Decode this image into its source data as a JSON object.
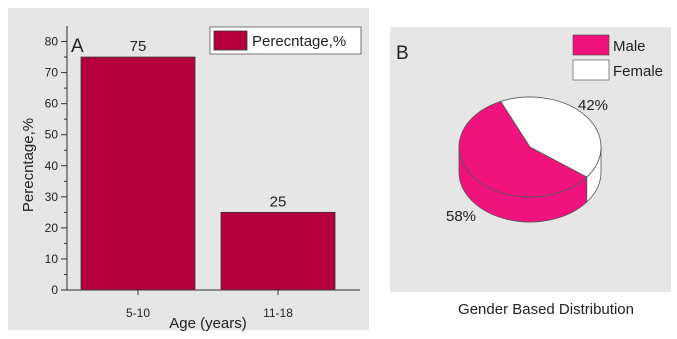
{
  "colors": {
    "panel_bg": "#e6e6e6",
    "bar_fill": "#b5003e",
    "male": "#f0137c",
    "male_side": "#f0137c",
    "female": "#ffffff"
  },
  "chart_data": [
    {
      "type": "bar",
      "panel_label": "A",
      "categories": [
        "5-10",
        "11-18"
      ],
      "values": [
        75,
        25
      ],
      "data_labels": [
        "75",
        "25"
      ],
      "series": [
        {
          "name": "Perecntage,%",
          "values": [
            75,
            25
          ]
        }
      ],
      "xlabel": "Age (years)",
      "ylabel": "Perecntage,%",
      "ylim": [
        0,
        85
      ],
      "yticks": [
        0,
        10,
        20,
        30,
        40,
        50,
        60,
        70,
        80
      ],
      "grid": false,
      "legend": "top-right"
    },
    {
      "type": "pie",
      "panel_label": "B",
      "caption": "Gender Based Distribution",
      "labels": [
        "Male",
        "Female"
      ],
      "values": [
        58,
        42
      ],
      "data_labels": [
        "58%",
        "42%"
      ],
      "legend": "top-right"
    }
  ]
}
